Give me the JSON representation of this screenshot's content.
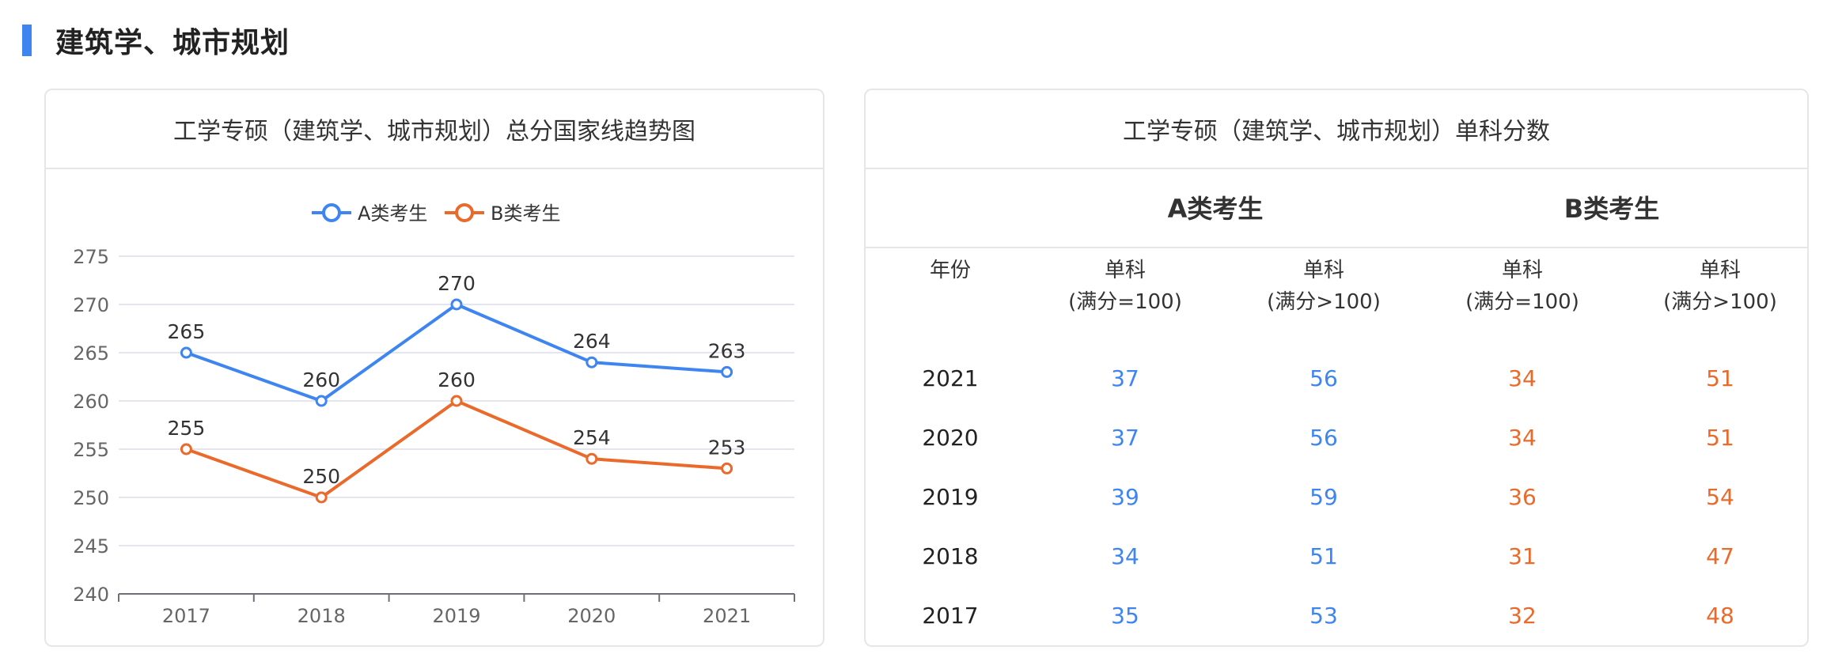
{
  "section": {
    "title": "建筑学、城市规划"
  },
  "left_card": {
    "title": "工学专硕（建筑学、城市规划）总分国家线趋势图"
  },
  "right_card": {
    "title": "工学专硕（建筑学、城市规划）单科分数",
    "group_a": "A类考生",
    "group_b": "B类考生",
    "col_year": "年份",
    "col_headers": [
      {
        "line1": "单科",
        "line2": "(满分=100)"
      },
      {
        "line1": "单科",
        "line2": "(满分>100)"
      },
      {
        "line1": "单科",
        "line2": "(满分=100)"
      },
      {
        "line1": "单科",
        "line2": "(满分>100)"
      }
    ],
    "rows": [
      {
        "year": "2021",
        "a1": "37",
        "a2": "56",
        "b1": "34",
        "b2": "51"
      },
      {
        "year": "2020",
        "a1": "37",
        "a2": "56",
        "b1": "34",
        "b2": "51"
      },
      {
        "year": "2019",
        "a1": "39",
        "a2": "59",
        "b1": "36",
        "b2": "54"
      },
      {
        "year": "2018",
        "a1": "34",
        "a2": "51",
        "b1": "31",
        "b2": "47"
      },
      {
        "year": "2017",
        "a1": "35",
        "a2": "53",
        "b1": "32",
        "b2": "48"
      }
    ]
  },
  "colors": {
    "accent": "#3f85f1",
    "series_a": "#3f85f1",
    "series_b": "#ea6a2c"
  },
  "chart_data": {
    "type": "line",
    "title": "工学专硕（建筑学、城市规划）总分国家线趋势图",
    "categories": [
      "2017",
      "2018",
      "2019",
      "2020",
      "2021"
    ],
    "series": [
      {
        "name": "A类考生",
        "values": [
          265,
          260,
          270,
          264,
          263
        ],
        "color": "#3f85f1"
      },
      {
        "name": "B类考生",
        "values": [
          255,
          250,
          260,
          254,
          253
        ],
        "color": "#ea6a2c"
      }
    ],
    "ylim": [
      240,
      275
    ],
    "yticks": [
      240,
      245,
      250,
      255,
      260,
      265,
      270,
      275
    ],
    "grid": true,
    "legend": "top-center",
    "data_labels": true
  }
}
